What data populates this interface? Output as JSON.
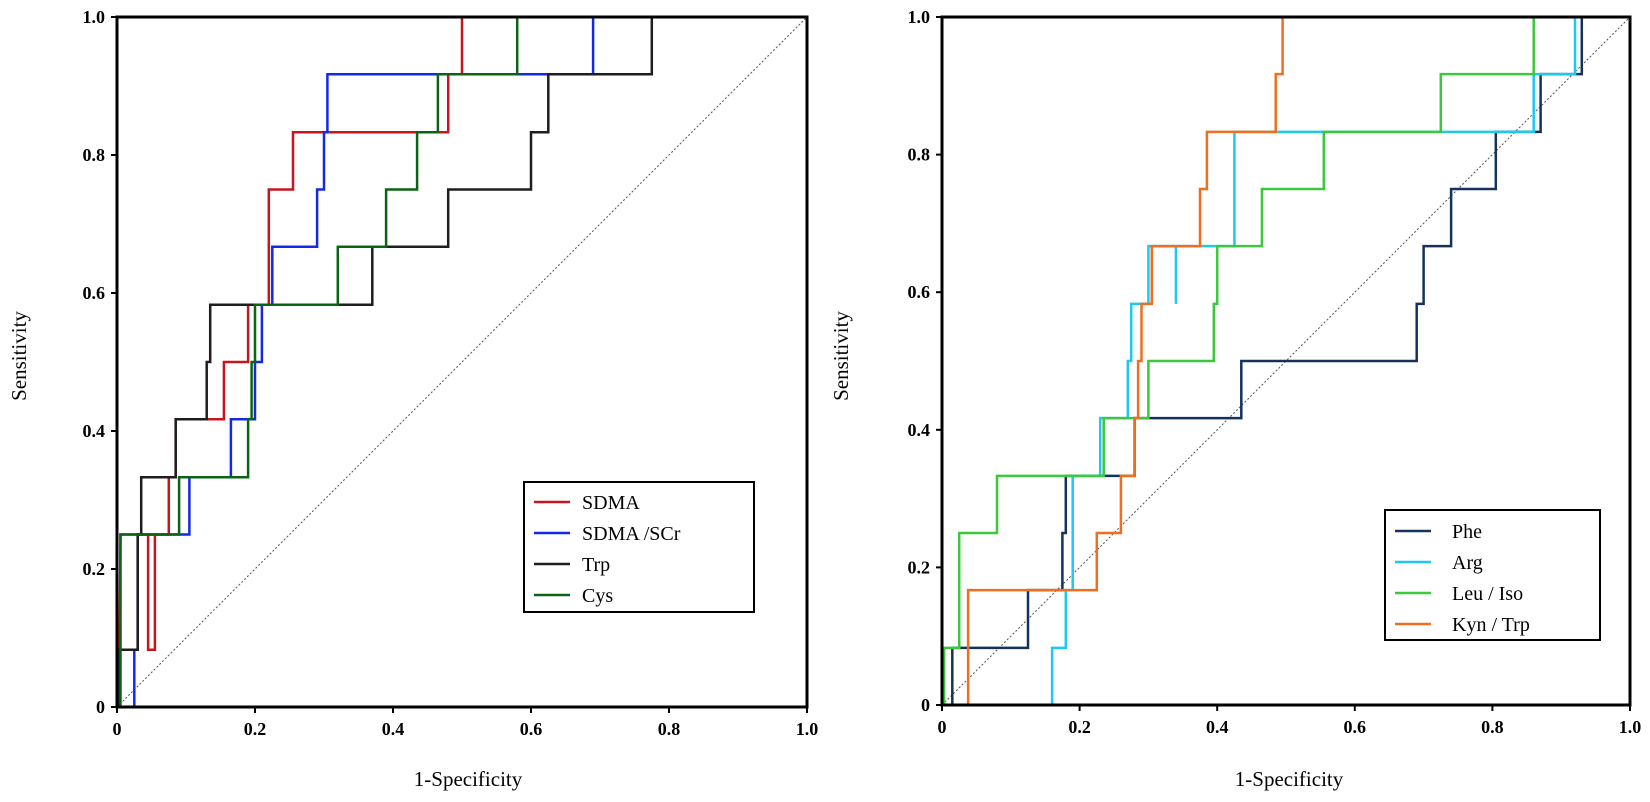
{
  "chart_data": [
    {
      "type": "line",
      "title": "",
      "xlabel": "1-Specificity",
      "ylabel": "Sensitivity",
      "xlim": [
        0,
        1
      ],
      "ylim": [
        0,
        1
      ],
      "xticks": [
        "0",
        "0.2",
        "0.4",
        "0.6",
        "0.8",
        "1.0"
      ],
      "yticks": [
        "0",
        "0.2",
        "0.4",
        "0.6",
        "0.8",
        "1.0"
      ],
      "legend_position": "lower-right",
      "reference_line": "diagonal",
      "series": [
        {
          "name": "SDMA",
          "color": "#c8141e",
          "points": [
            [
              0,
              0
            ],
            [
              0.003,
              0
            ],
            [
              0.005,
              0.25
            ],
            [
              0.055,
              0.25
            ],
            [
              0.055,
              0.083
            ],
            [
              0.045,
              0.083
            ],
            [
              0.045,
              0.25
            ],
            [
              0.075,
              0.25
            ],
            [
              0.075,
              0.333
            ],
            [
              0.085,
              0.333
            ],
            [
              0.085,
              0.417
            ],
            [
              0.155,
              0.417
            ],
            [
              0.155,
              0.5
            ],
            [
              0.19,
              0.5
            ],
            [
              0.19,
              0.583
            ],
            [
              0.22,
              0.583
            ],
            [
              0.22,
              0.75
            ],
            [
              0.255,
              0.75
            ],
            [
              0.255,
              0.833
            ],
            [
              0.48,
              0.833
            ],
            [
              0.48,
              0.917
            ],
            [
              0.5,
              0.917
            ],
            [
              0.5,
              1
            ],
            [
              1,
              1
            ]
          ]
        },
        {
          "name": "SDMA /SCr",
          "color": "#1428e6",
          "points": [
            [
              0,
              0
            ],
            [
              0.025,
              0
            ],
            [
              0.025,
              0.083
            ],
            [
              0.03,
              0.083
            ],
            [
              0.03,
              0.25
            ],
            [
              0.105,
              0.25
            ],
            [
              0.105,
              0.333
            ],
            [
              0.165,
              0.333
            ],
            [
              0.165,
              0.417
            ],
            [
              0.2,
              0.417
            ],
            [
              0.2,
              0.5
            ],
            [
              0.21,
              0.5
            ],
            [
              0.21,
              0.583
            ],
            [
              0.225,
              0.583
            ],
            [
              0.225,
              0.667
            ],
            [
              0.29,
              0.667
            ],
            [
              0.29,
              0.75
            ],
            [
              0.3,
              0.75
            ],
            [
              0.3,
              0.833
            ],
            [
              0.305,
              0.833
            ],
            [
              0.305,
              0.917
            ],
            [
              0.69,
              0.917
            ],
            [
              0.69,
              1
            ],
            [
              1,
              1
            ]
          ]
        },
        {
          "name": "Trp",
          "color": "#1e1e1e",
          "points": [
            [
              0,
              0
            ],
            [
              0.003,
              0
            ],
            [
              0.003,
              0.083
            ],
            [
              0.03,
              0.083
            ],
            [
              0.03,
              0.25
            ],
            [
              0.035,
              0.25
            ],
            [
              0.035,
              0.333
            ],
            [
              0.085,
              0.333
            ],
            [
              0.085,
              0.417
            ],
            [
              0.13,
              0.417
            ],
            [
              0.13,
              0.5
            ],
            [
              0.135,
              0.5
            ],
            [
              0.135,
              0.583
            ],
            [
              0.37,
              0.583
            ],
            [
              0.37,
              0.667
            ],
            [
              0.48,
              0.667
            ],
            [
              0.48,
              0.75
            ],
            [
              0.6,
              0.75
            ],
            [
              0.6,
              0.833
            ],
            [
              0.625,
              0.833
            ],
            [
              0.625,
              0.917
            ],
            [
              0.775,
              0.917
            ],
            [
              0.775,
              1
            ],
            [
              1,
              1
            ]
          ]
        },
        {
          "name": "Cys",
          "color": "#0a6414",
          "points": [
            [
              0,
              0
            ],
            [
              0.005,
              0
            ],
            [
              0.005,
              0.25
            ],
            [
              0.09,
              0.25
            ],
            [
              0.09,
              0.333
            ],
            [
              0.19,
              0.333
            ],
            [
              0.19,
              0.417
            ],
            [
              0.195,
              0.417
            ],
            [
              0.195,
              0.5
            ],
            [
              0.2,
              0.5
            ],
            [
              0.2,
              0.583
            ],
            [
              0.32,
              0.583
            ],
            [
              0.32,
              0.667
            ],
            [
              0.39,
              0.667
            ],
            [
              0.39,
              0.75
            ],
            [
              0.435,
              0.75
            ],
            [
              0.435,
              0.833
            ],
            [
              0.465,
              0.833
            ],
            [
              0.465,
              0.917
            ],
            [
              0.58,
              0.917
            ],
            [
              0.58,
              1
            ],
            [
              1,
              1
            ]
          ]
        }
      ]
    },
    {
      "type": "line",
      "title": "",
      "xlabel": "1-Specificity",
      "ylabel": "Sensitivity",
      "xlim": [
        0,
        1
      ],
      "ylim": [
        0,
        1
      ],
      "xticks": [
        "0",
        "0.2",
        "0.4",
        "0.6",
        "0.8",
        "1.0"
      ],
      "yticks": [
        "0",
        "0.2",
        "0.4",
        "0.6",
        "0.8",
        "1.0"
      ],
      "legend_position": "lower-right",
      "reference_line": "diagonal",
      "series": [
        {
          "name": "Phe",
          "color": "#14325a",
          "points": [
            [
              0,
              0
            ],
            [
              0.015,
              0
            ],
            [
              0.015,
              0.083
            ],
            [
              0.125,
              0.083
            ],
            [
              0.125,
              0.167
            ],
            [
              0.175,
              0.167
            ],
            [
              0.175,
              0.25
            ],
            [
              0.18,
              0.25
            ],
            [
              0.18,
              0.333
            ],
            [
              0.28,
              0.333
            ],
            [
              0.28,
              0.417
            ],
            [
              0.435,
              0.417
            ],
            [
              0.435,
              0.5
            ],
            [
              0.69,
              0.5
            ],
            [
              0.69,
              0.583
            ],
            [
              0.7,
              0.583
            ],
            [
              0.7,
              0.667
            ],
            [
              0.74,
              0.667
            ],
            [
              0.74,
              0.75
            ],
            [
              0.805,
              0.75
            ],
            [
              0.805,
              0.833
            ],
            [
              0.87,
              0.833
            ],
            [
              0.87,
              0.917
            ],
            [
              0.93,
              0.917
            ],
            [
              0.93,
              1
            ],
            [
              1,
              1
            ]
          ]
        },
        {
          "name": "Arg",
          "color": "#1ec8f0",
          "points": [
            [
              0,
              0
            ],
            [
              0.16,
              0
            ],
            [
              0.16,
              0.083
            ],
            [
              0.18,
              0.083
            ],
            [
              0.18,
              0.167
            ],
            [
              0.19,
              0.167
            ],
            [
              0.19,
              0.333
            ],
            [
              0.23,
              0.333
            ],
            [
              0.23,
              0.417
            ],
            [
              0.27,
              0.417
            ],
            [
              0.27,
              0.5
            ],
            [
              0.275,
              0.5
            ],
            [
              0.275,
              0.583
            ],
            [
              0.3,
              0.583
            ],
            [
              0.3,
              0.667
            ],
            [
              0.34,
              0.667
            ],
            [
              0.34,
              0.583
            ],
            [
              0.34,
              0.667
            ],
            [
              0.4,
              0.667
            ],
            [
              0.425,
              0.667
            ],
            [
              0.425,
              0.833
            ],
            [
              0.86,
              0.833
            ],
            [
              0.86,
              0.917
            ],
            [
              0.92,
              0.917
            ],
            [
              0.92,
              1
            ],
            [
              1,
              1
            ]
          ]
        },
        {
          "name": "Leu / Iso",
          "color": "#3cc83c",
          "points": [
            [
              0,
              0
            ],
            [
              0.003,
              0
            ],
            [
              0.003,
              0.083
            ],
            [
              0.025,
              0.083
            ],
            [
              0.025,
              0.25
            ],
            [
              0.08,
              0.25
            ],
            [
              0.08,
              0.333
            ],
            [
              0.235,
              0.333
            ],
            [
              0.235,
              0.417
            ],
            [
              0.3,
              0.417
            ],
            [
              0.3,
              0.5
            ],
            [
              0.395,
              0.5
            ],
            [
              0.395,
              0.583
            ],
            [
              0.4,
              0.583
            ],
            [
              0.4,
              0.667
            ],
            [
              0.465,
              0.667
            ],
            [
              0.465,
              0.75
            ],
            [
              0.555,
              0.75
            ],
            [
              0.555,
              0.833
            ],
            [
              0.725,
              0.833
            ],
            [
              0.725,
              0.917
            ],
            [
              0.86,
              0.917
            ],
            [
              0.86,
              1
            ],
            [
              1,
              1
            ]
          ]
        },
        {
          "name": "Kyn / Trp",
          "color": "#f06e1e",
          "points": [
            [
              0,
              0
            ],
            [
              0.038,
              0
            ],
            [
              0.038,
              0.167
            ],
            [
              0.225,
              0.167
            ],
            [
              0.225,
              0.25
            ],
            [
              0.26,
              0.25
            ],
            [
              0.26,
              0.333
            ],
            [
              0.28,
              0.333
            ],
            [
              0.28,
              0.417
            ],
            [
              0.285,
              0.417
            ],
            [
              0.285,
              0.5
            ],
            [
              0.29,
              0.5
            ],
            [
              0.29,
              0.583
            ],
            [
              0.305,
              0.583
            ],
            [
              0.305,
              0.667
            ],
            [
              0.375,
              0.667
            ],
            [
              0.375,
              0.75
            ],
            [
              0.385,
              0.75
            ],
            [
              0.385,
              0.833
            ],
            [
              0.485,
              0.833
            ],
            [
              0.485,
              0.917
            ],
            [
              0.495,
              0.917
            ],
            [
              0.495,
              1
            ],
            [
              1,
              1
            ]
          ]
        }
      ]
    }
  ]
}
